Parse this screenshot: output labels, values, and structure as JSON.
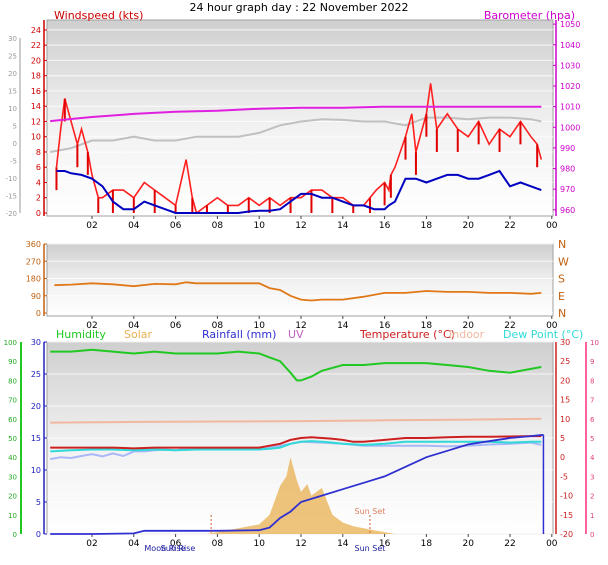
{
  "title": "24 hour graph day : 22 November 2022",
  "colors": {
    "wind": "#e00000",
    "gust": "#ff2020",
    "baro": "#e020e0",
    "grey_line": "#c0c0c0",
    "dir": "#e07818",
    "humidity": "#22c822",
    "solar": "#e8b050",
    "rainfall": "#3030d0",
    "uv": "#c060c0",
    "temperature": "#cc2020",
    "indoor": "#f0b8a0",
    "dewpoint": "#30d8d8",
    "temp_feel": "#a8b8f8",
    "navy": "#0000c0"
  },
  "chart_data": [
    {
      "type": "line",
      "panel": "wind-pressure",
      "title": "24 hour graph day : 22 November 2022",
      "x_ticks": [
        "02",
        "04",
        "06",
        "08",
        "10",
        "12",
        "14",
        "16",
        "18",
        "20",
        "22",
        "00"
      ],
      "left_axis": {
        "label": "Windspeed (kts)",
        "ticks": [
          0,
          2,
          4,
          6,
          8,
          10,
          12,
          14,
          16,
          18,
          20,
          22,
          24
        ],
        "range": [
          0,
          25.3
        ]
      },
      "outer_left_axis": {
        "ticks": [
          -20,
          -15,
          -10,
          -5,
          0,
          5,
          10,
          15,
          20,
          25,
          30
        ]
      },
      "right_axis": {
        "label": "Barometer (hpa)",
        "ticks": [
          960,
          970,
          980,
          990,
          1000,
          1010,
          1020,
          1030,
          1040,
          1050
        ],
        "range": [
          957,
          1052
        ]
      },
      "series": [
        {
          "name": "Windspeed (kts)",
          "role": "gust",
          "x": [
            0.3,
            0.5,
            0.7,
            1,
            1.3,
            1.5,
            1.8,
            2,
            2.3,
            2.5,
            3,
            3.5,
            4,
            4.5,
            5,
            5.5,
            6,
            6.5,
            6.8,
            7,
            7.5,
            8,
            8.5,
            9,
            9.5,
            10,
            10.5,
            11,
            11.5,
            12,
            12.5,
            13,
            13.5,
            14,
            14.5,
            15,
            15.3,
            15.6,
            16,
            16.2,
            16.3,
            16.5,
            17,
            17.3,
            17.5,
            17.8,
            18,
            18.2,
            18.5,
            19,
            19.5,
            20,
            20.5,
            21,
            21.5,
            22,
            22.5,
            23,
            23.3,
            23.5
          ],
          "values": [
            6,
            11,
            15,
            12,
            9,
            11,
            8,
            5,
            2,
            2,
            3,
            3,
            2,
            4,
            3,
            2,
            1,
            7,
            2,
            0,
            1,
            2,
            1,
            1,
            2,
            1,
            2,
            1,
            2,
            2,
            3,
            3,
            2,
            2,
            1,
            1,
            2,
            3,
            4,
            3,
            5,
            6,
            10,
            13,
            8,
            11,
            13,
            17,
            11,
            13,
            11,
            10,
            12,
            9,
            11,
            10,
            12,
            10,
            9,
            7
          ]
        },
        {
          "name": "wind-average",
          "role": "wind-average",
          "x": [
            0.3,
            0.7,
            1,
            1.5,
            2,
            2.5,
            3,
            3.5,
            4,
            4.5,
            5,
            5.5,
            6,
            6.5,
            7,
            7.5,
            8,
            8.5,
            9,
            9.5,
            10,
            10.5,
            11,
            11.5,
            12,
            12.5,
            13,
            13.5,
            14,
            14.5,
            15,
            15.5,
            16,
            16.2,
            16.5,
            17,
            17.5,
            18,
            18.5,
            19,
            19.5,
            20,
            20.5,
            21,
            21.5,
            22,
            22.5,
            23,
            23.5
          ],
          "values": [
            5.5,
            5.5,
            5.2,
            5,
            4.5,
            3.5,
            1.5,
            0.5,
            0.5,
            1.5,
            1,
            0.5,
            0,
            0,
            0,
            0,
            0,
            0,
            0,
            0.2,
            0.3,
            0.3,
            0.5,
            1.5,
            2.5,
            2.5,
            2,
            2,
            1.5,
            1,
            1,
            0.5,
            0.5,
            1,
            1.5,
            4.5,
            4.5,
            4,
            4.5,
            5,
            5,
            4.5,
            4.5,
            5,
            5.5,
            3.5,
            4,
            3.5,
            3
          ]
        },
        {
          "name": "Barometer (hpa)",
          "role": "pressure",
          "x": [
            0,
            1,
            2,
            4,
            6,
            8,
            10,
            12,
            14,
            16,
            18,
            20,
            22,
            23.5
          ],
          "values": [
            1003,
            1004,
            1005,
            1006.5,
            1007.5,
            1008,
            1009,
            1009.5,
            1009.5,
            1010,
            1010,
            1010,
            1010,
            1010
          ]
        },
        {
          "name": "grey-trace",
          "role": "grey",
          "x": [
            0,
            1,
            2,
            3,
            4,
            5,
            6,
            7,
            8,
            9,
            10,
            11,
            12,
            13,
            14,
            15,
            16,
            17,
            18,
            19,
            20,
            21,
            22,
            23,
            23.5
          ],
          "values": [
            8,
            8.5,
            9.5,
            9.5,
            10,
            9.5,
            9.5,
            10,
            10,
            10,
            10.5,
            11.5,
            12,
            12.3,
            12.2,
            12,
            12,
            11.5,
            12.5,
            12.5,
            12.3,
            12.5,
            12.5,
            12.3,
            12
          ]
        }
      ]
    },
    {
      "type": "line",
      "panel": "wind-direction",
      "x_ticks": [
        "02",
        "04",
        "06",
        "08",
        "10",
        "12",
        "14",
        "16",
        "18",
        "20",
        "22",
        "00"
      ],
      "left_ticks": [
        0,
        90,
        180,
        270,
        360
      ],
      "right_ticks": [
        "N",
        "W",
        "S",
        "E",
        "N"
      ],
      "y_range": [
        0,
        360
      ],
      "series": [
        {
          "name": "wind-direction",
          "x": [
            0.2,
            1,
            2,
            3,
            4,
            5,
            6,
            6.5,
            7,
            8,
            9,
            10,
            10.5,
            11,
            11.5,
            12,
            12.5,
            13,
            14,
            15,
            16,
            17,
            18,
            19,
            20,
            21,
            22,
            23,
            23.5
          ],
          "values": [
            145,
            148,
            155,
            150,
            140,
            152,
            150,
            160,
            155,
            155,
            155,
            155,
            130,
            120,
            90,
            70,
            65,
            70,
            70,
            85,
            105,
            105,
            115,
            110,
            110,
            105,
            105,
            100,
            105
          ]
        }
      ]
    },
    {
      "type": "line",
      "panel": "temperature-humidity",
      "x_ticks": [
        "02",
        "04",
        "06",
        "08",
        "10",
        "12",
        "14",
        "16",
        "18",
        "20",
        "22",
        "00"
      ],
      "legend": [
        "Humidity",
        "Solar",
        "Rainfall (mm)",
        "UV",
        "Temperature (°C)",
        "Indoor",
        "Dew Point (°C)"
      ],
      "left_ticks": [
        0,
        10,
        20,
        30,
        40,
        50,
        60,
        70,
        80,
        90,
        100
      ],
      "mid_ticks": [
        0,
        5,
        10,
        15,
        20,
        25,
        30
      ],
      "right_ticks": [
        -20,
        -15,
        -10,
        -5,
        0,
        5,
        10,
        15,
        20,
        25,
        30
      ],
      "far_right_ticks": [
        0,
        1,
        2,
        3,
        4,
        5,
        6,
        7,
        8,
        9,
        10
      ],
      "annotations": [
        "Moon Rise",
        "Sun Rise",
        "Sun Set"
      ],
      "series": [
        {
          "name": "Humidity",
          "x": [
            0,
            1,
            2,
            3,
            4,
            5,
            6,
            7,
            8,
            9,
            10,
            10.5,
            11,
            11.5,
            11.8,
            12,
            12.5,
            13,
            14,
            15,
            16,
            17,
            18,
            19,
            20,
            21,
            22,
            23,
            23.5
          ],
          "values": [
            95,
            95,
            96,
            95,
            94,
            95,
            94,
            94,
            94,
            95,
            94,
            92,
            90,
            84,
            80,
            80,
            82,
            85,
            88,
            88,
            89,
            89,
            89,
            88,
            87,
            85,
            84,
            86,
            87
          ]
        },
        {
          "name": "Temperature (°C)",
          "x": [
            0,
            1,
            2,
            3,
            4,
            5,
            6,
            7,
            8,
            9,
            10,
            10.5,
            11,
            11.5,
            12,
            12.5,
            13,
            13.5,
            14,
            14.5,
            15,
            16,
            17,
            18,
            19,
            20,
            21,
            22,
            23,
            23.5
          ],
          "values": [
            2.5,
            2.5,
            2.5,
            2.5,
            2.3,
            2.5,
            2.5,
            2.5,
            2.5,
            2.5,
            2.5,
            3,
            3.5,
            4.5,
            5,
            5.2,
            5,
            4.8,
            4.5,
            4,
            4,
            4.5,
            5,
            5,
            5.2,
            5.3,
            5.3,
            5.4,
            5.5,
            5.5
          ]
        },
        {
          "name": "Dew Point (°C)",
          "x": [
            0,
            1,
            2,
            3,
            4,
            5,
            6,
            7,
            8,
            9,
            10,
            10.5,
            11,
            11.5,
            12,
            12.5,
            13,
            13.5,
            14,
            15,
            16,
            17,
            18,
            19,
            20,
            21,
            22,
            23,
            23.5
          ],
          "values": [
            1.5,
            1.8,
            2,
            2,
            1.8,
            2,
            1.8,
            2,
            2,
            2,
            2,
            2.2,
            2.5,
            3.5,
            4,
            4.2,
            4,
            3.8,
            3.5,
            3.2,
            3.5,
            4,
            4,
            4,
            4,
            4,
            3.8,
            4,
            4
          ]
        },
        {
          "name": "feels-like",
          "x": [
            0,
            0.5,
            1,
            1.5,
            2,
            2.5,
            3,
            3.5,
            4,
            4.5,
            5,
            5.5,
            6,
            6.5,
            7,
            7.5,
            8,
            9,
            10,
            11,
            12,
            13,
            14,
            15,
            16,
            17,
            18,
            19,
            20,
            21,
            22,
            23,
            23.5
          ],
          "values": [
            -0.5,
            0,
            -0.2,
            0.3,
            0.8,
            0.2,
            1,
            0.3,
            1.5,
            1.5,
            1.8,
            2,
            1.8,
            2.3,
            2,
            2.2,
            2.3,
            2.3,
            2.4,
            3,
            4,
            3.8,
            3.5,
            3,
            3,
            3,
            3,
            2.8,
            3,
            3.3,
            3.5,
            3.8,
            3.2
          ]
        },
        {
          "name": "Indoor",
          "x": [
            0,
            4,
            8,
            12,
            16,
            20,
            23.5
          ],
          "values": [
            9,
            9.2,
            9.3,
            9.4,
            9.6,
            9.8,
            10
          ]
        },
        {
          "name": "Rainfall (mm)",
          "x": [
            0,
            2,
            4,
            4.5,
            6,
            8,
            10,
            10.5,
            11,
            11.5,
            12,
            13,
            14,
            15,
            16,
            17,
            18,
            19,
            20,
            21,
            22,
            23,
            23.6
          ],
          "values": [
            0,
            0,
            0.1,
            0.5,
            0.5,
            0.5,
            0.6,
            1,
            2.5,
            3.5,
            5,
            6,
            7,
            8,
            9,
            10.5,
            12,
            13,
            14,
            14.5,
            15,
            15.3,
            15.5
          ]
        },
        {
          "name": "Solar",
          "x": [
            7.5,
            8,
            9,
            9.5,
            10,
            10.5,
            11,
            11.3,
            11.5,
            11.8,
            12,
            12.3,
            12.5,
            13,
            13.5,
            14,
            14.5,
            15,
            15.5,
            16,
            16.5
          ],
          "values": [
            0,
            1,
            3,
            4,
            5,
            10,
            25,
            30,
            40,
            28,
            22,
            26,
            20,
            24,
            10,
            6,
            4,
            3,
            2,
            1,
            0
          ]
        }
      ]
    }
  ]
}
